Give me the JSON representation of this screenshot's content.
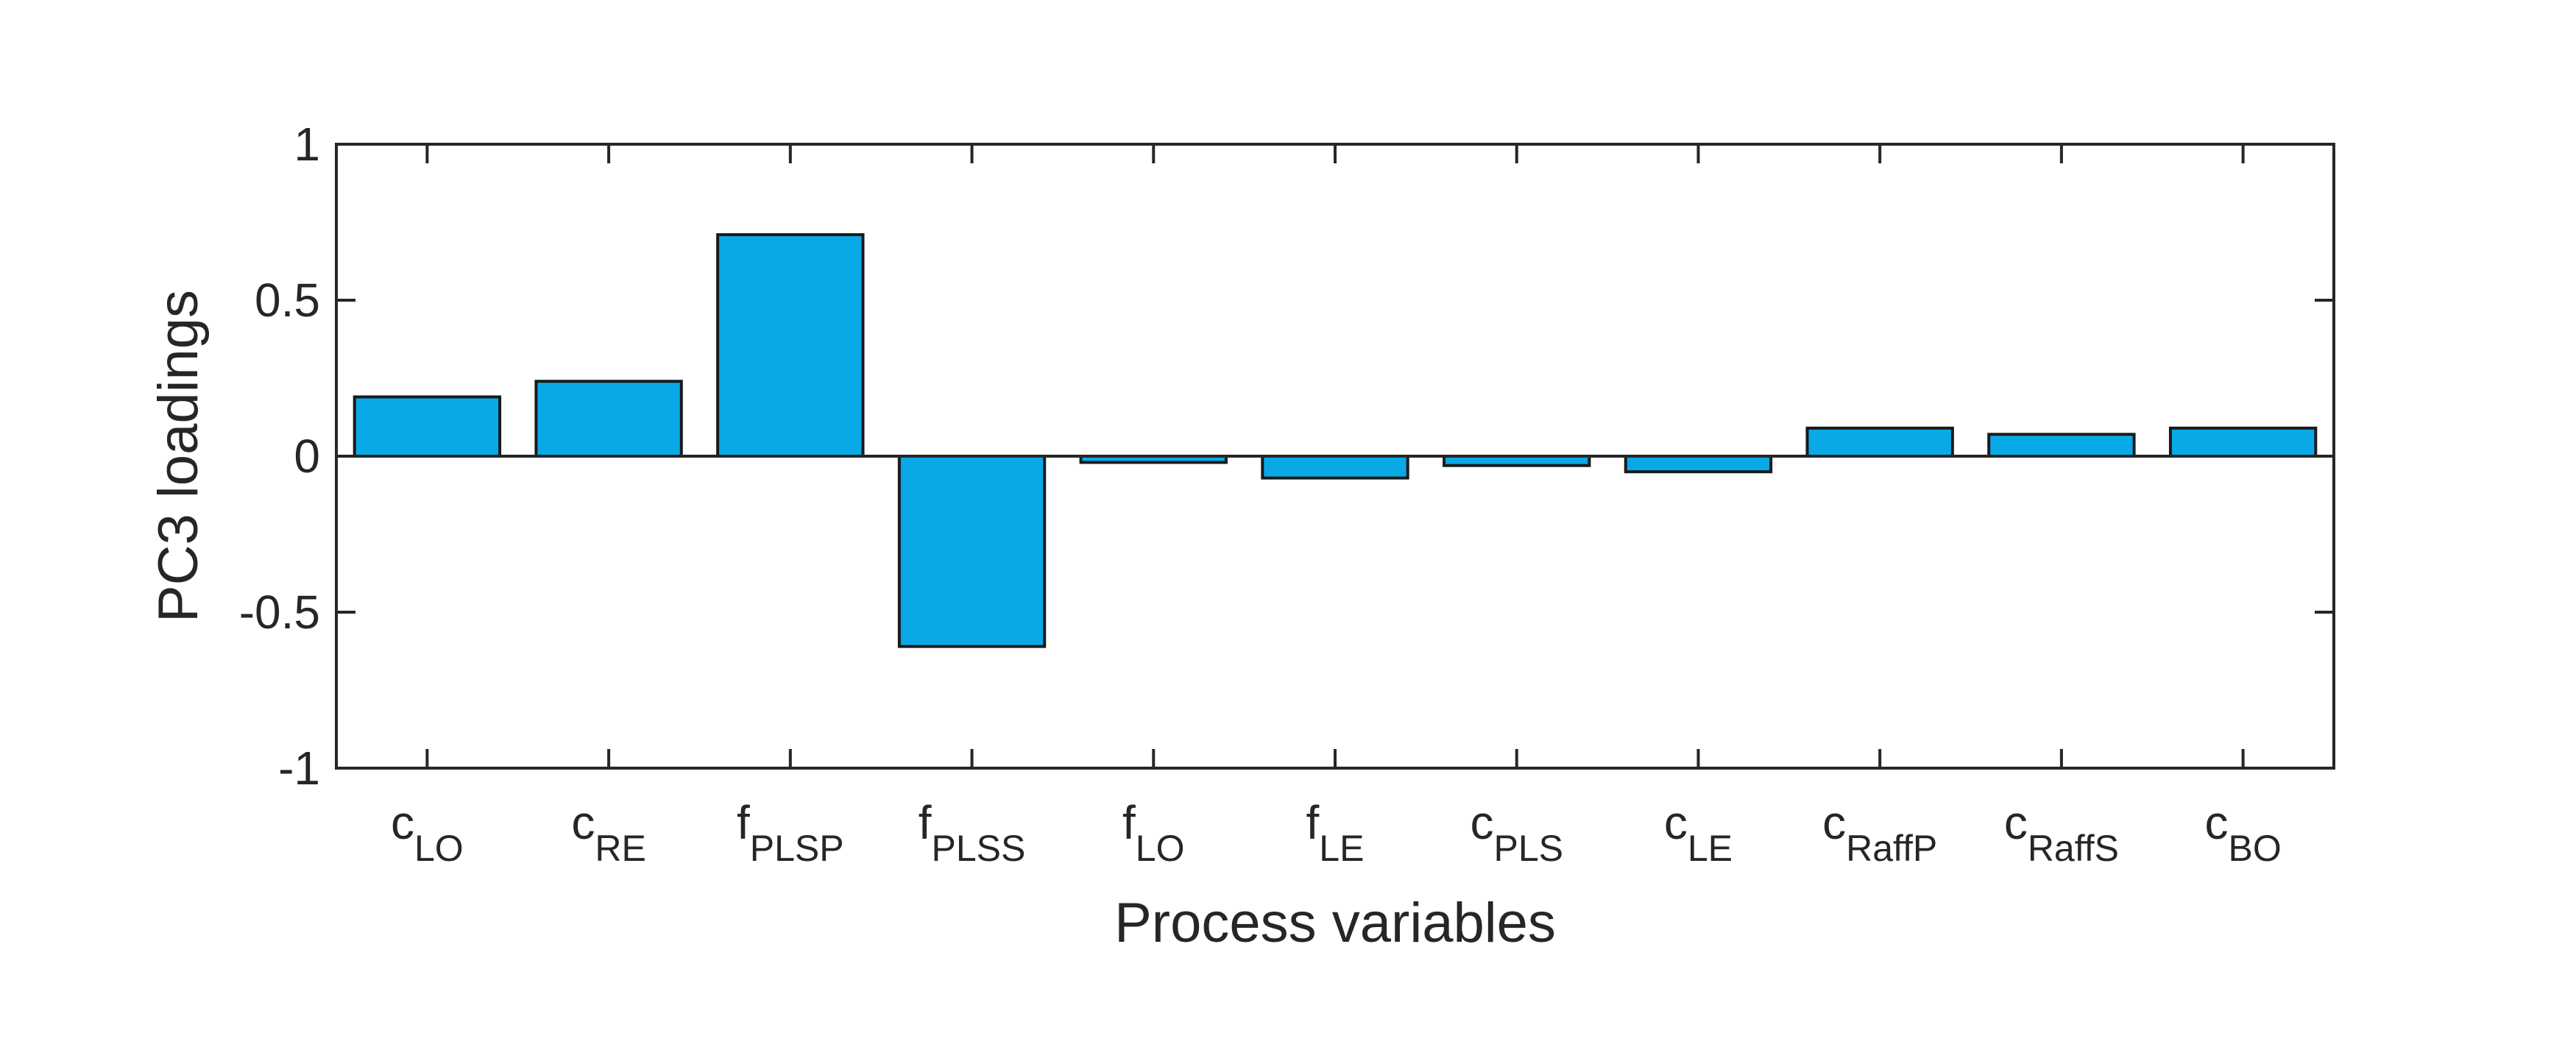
{
  "chart_data": {
    "type": "bar",
    "xlabel": "Process variables",
    "ylabel": "PC3 loadings",
    "ylim": [
      -1,
      1
    ],
    "yticks": [
      "-1",
      "-0.5",
      "0",
      "0.5",
      "1"
    ],
    "ytick_values": [
      -1,
      -0.5,
      0,
      0.5,
      1
    ],
    "categories": [
      {
        "base": "c",
        "sub": "LO"
      },
      {
        "base": "c",
        "sub": "RE"
      },
      {
        "base": "f",
        "sub": "PLSP"
      },
      {
        "base": "f",
        "sub": "PLSS"
      },
      {
        "base": "f",
        "sub": "LO"
      },
      {
        "base": "f",
        "sub": "LE"
      },
      {
        "base": "c",
        "sub": "PLS"
      },
      {
        "base": "c",
        "sub": "LE"
      },
      {
        "base": "c",
        "sub": "RaffP"
      },
      {
        "base": "c",
        "sub": "RaffS"
      },
      {
        "base": "c",
        "sub": "BO"
      }
    ],
    "values": [
      0.19,
      0.24,
      0.71,
      -0.61,
      -0.02,
      -0.07,
      -0.03,
      -0.05,
      0.09,
      0.07,
      0.09
    ],
    "bar_color": "#08A9E6",
    "edge_color": "#1A1A1A",
    "grid": false,
    "legend": "none"
  }
}
